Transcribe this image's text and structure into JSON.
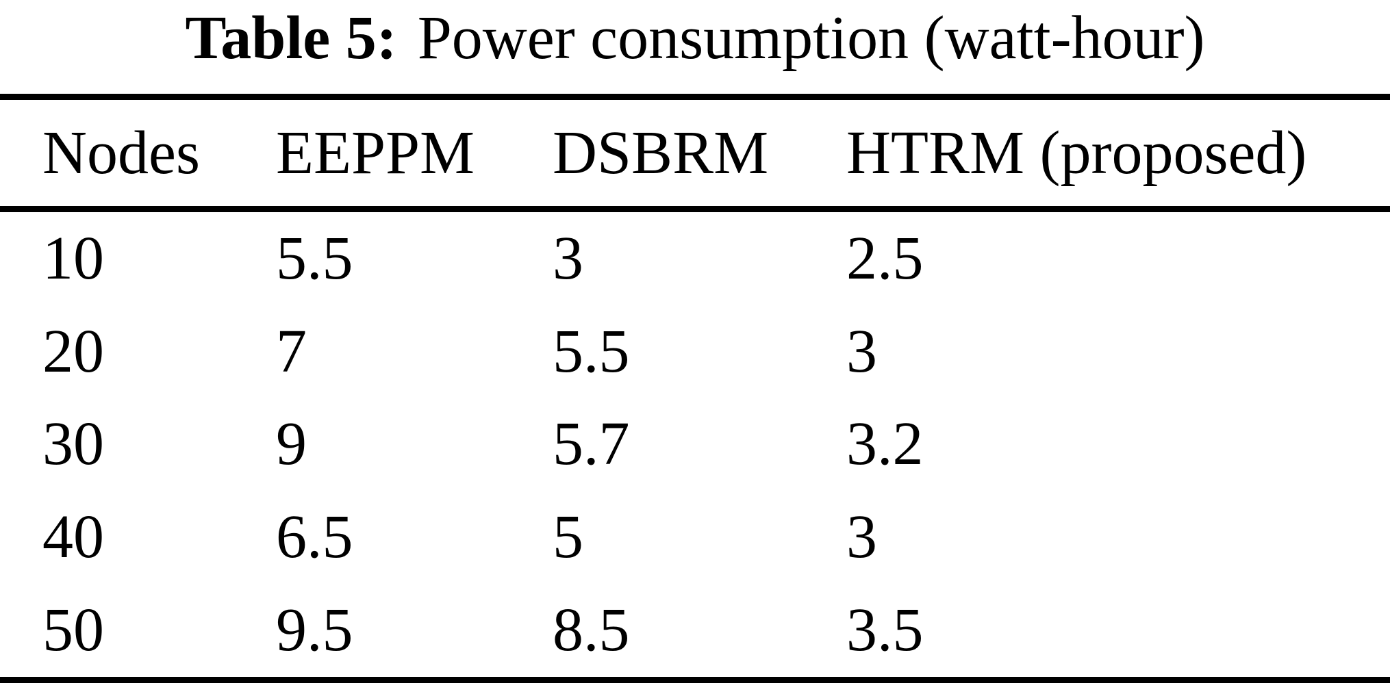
{
  "table": {
    "title_bold": "Table 5:",
    "title_rest": "Power consumption (watt-hour)",
    "columns": [
      "Nodes",
      "EEPPM",
      "DSBRM",
      "HTRM (proposed)"
    ],
    "rows": [
      [
        "10",
        "5.5",
        "3",
        "2.5"
      ],
      [
        "20",
        "7",
        "5.5",
        "3"
      ],
      [
        "30",
        "9",
        "5.7",
        "3.2"
      ],
      [
        "40",
        "6.5",
        "5",
        "3"
      ],
      [
        "50",
        "9.5",
        "8.5",
        "3.5"
      ]
    ],
    "text_color": "#000000",
    "background_color": "#ffffff"
  },
  "chart_data": {
    "type": "table",
    "title": "Table 5: Power consumption (watt-hour)",
    "categories": [
      10,
      20,
      30,
      40,
      50
    ],
    "xlabel": "Nodes",
    "ylabel": "Power consumption (watt-hour)",
    "series": [
      {
        "name": "EEPPM",
        "values": [
          5.5,
          7,
          9,
          6.5,
          9.5
        ]
      },
      {
        "name": "DSBRM",
        "values": [
          3,
          5.5,
          5.7,
          5,
          8.5
        ]
      },
      {
        "name": "HTRM (proposed)",
        "values": [
          2.5,
          3,
          3.2,
          3,
          3.5
        ]
      }
    ]
  }
}
